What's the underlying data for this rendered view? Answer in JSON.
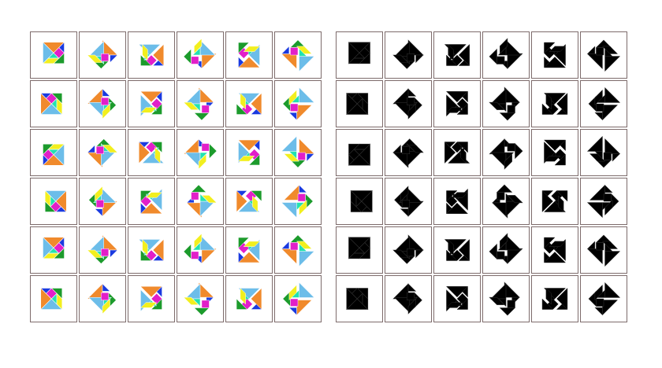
{
  "panels": {
    "colored": {
      "rows": 6,
      "cols": 6
    },
    "silhouettes": {
      "rows": 6,
      "cols": 6
    }
  },
  "piece_colors": {
    "large_triangle_1": "#f08a2c",
    "large_triangle_2": "#6cbde9",
    "medium_triangle": "#1c9b2c",
    "small_triangle_1": "#1a3ae0",
    "small_triangle_2": "#22e2b0",
    "square": "#e21fc9",
    "parallelogram": "#f2ef1e"
  },
  "silhouette_color": "#000000",
  "border_color": "#7d6b6b"
}
